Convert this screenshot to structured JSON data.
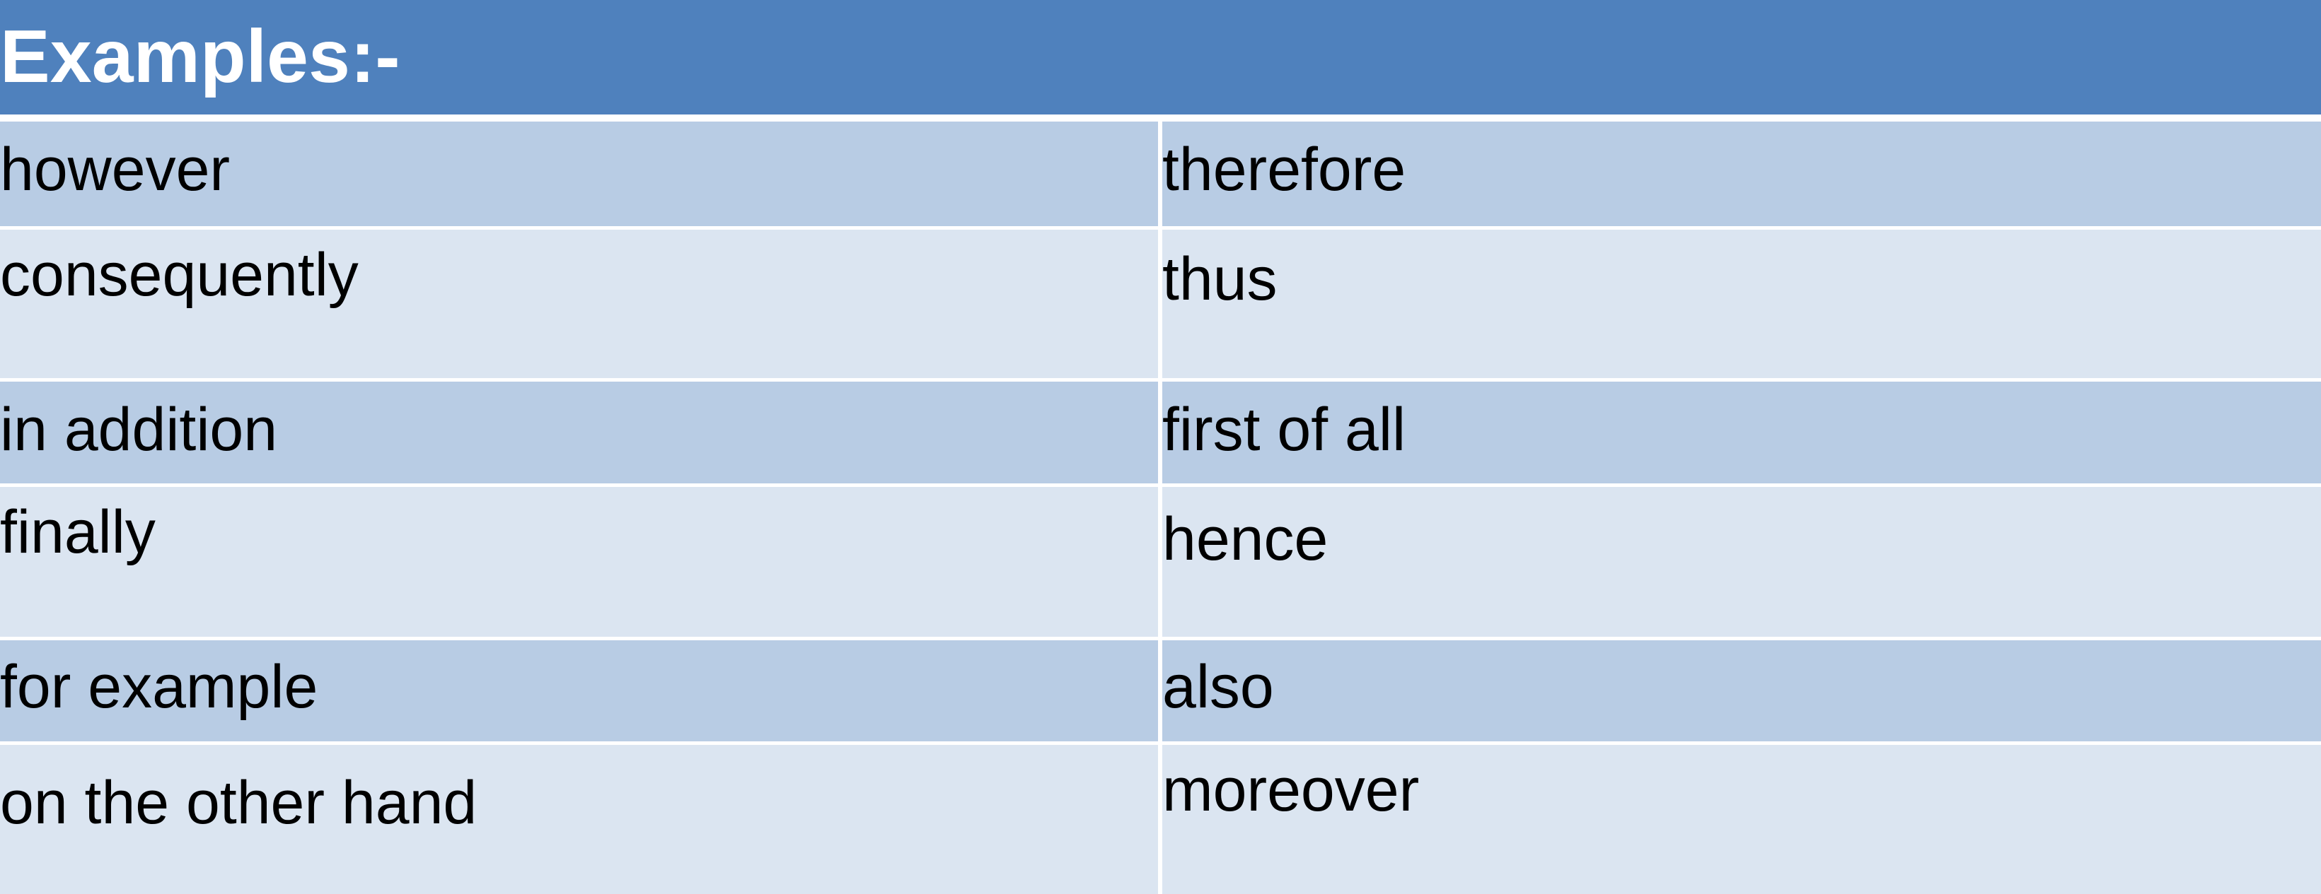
{
  "title": "Examples:-",
  "rows": [
    {
      "left": "however",
      "right": "therefore"
    },
    {
      "left": "consequently",
      "right": "thus"
    },
    {
      "left": "in addition",
      "right": "first of all"
    },
    {
      "left": "finally",
      "right": "hence"
    },
    {
      "left": "for example",
      "right": "also"
    },
    {
      "left": "on the other hand",
      "right": "moreover"
    }
  ],
  "colors": {
    "header": "#4f81bd",
    "row_dark": "#b8cce4",
    "row_light": "#dbe5f1",
    "text": "#000000",
    "header_text": "#ffffff"
  }
}
